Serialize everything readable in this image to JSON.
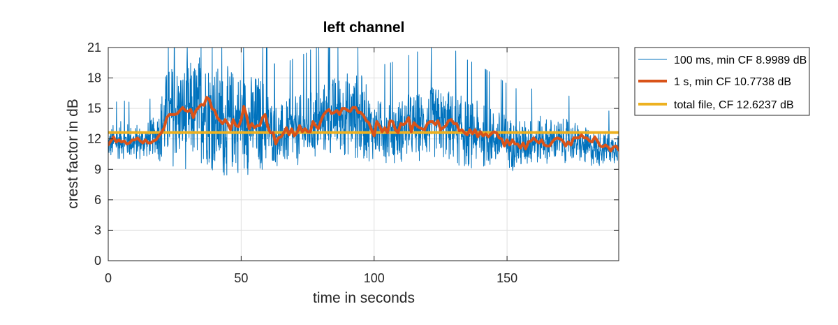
{
  "chart_data": {
    "type": "line",
    "title": "left channel",
    "xlabel": "time in seconds",
    "ylabel": "crest factor in dB",
    "xlim": [
      0,
      192
    ],
    "ylim": [
      0,
      21
    ],
    "xticks": [
      0,
      50,
      100,
      150
    ],
    "yticks": [
      0,
      3,
      6,
      9,
      12,
      15,
      18,
      21
    ],
    "grid": true,
    "legend_position": "outside-right-top",
    "series": [
      {
        "name": "100 ms, min CF 8.9989 dB",
        "color": "#0072BD",
        "style": "thin",
        "sample_interval_s": 0.1,
        "trend_x": [
          0,
          5,
          10,
          15,
          19,
          21,
          25,
          30,
          35,
          38,
          42,
          46,
          50,
          54,
          58,
          62,
          65,
          70,
          75,
          80,
          85,
          90,
          95,
          100,
          105,
          110,
          115,
          120,
          125,
          130,
          135,
          140,
          145,
          150,
          155,
          160,
          165,
          170,
          175,
          180,
          185,
          190,
          192
        ],
        "trend_y": [
          11.5,
          11.9,
          11.6,
          11.9,
          12.6,
          13.8,
          14.6,
          14.2,
          15.2,
          14.8,
          13.4,
          13.8,
          13.9,
          13.5,
          13.6,
          12.7,
          12.2,
          12.7,
          12.9,
          13.8,
          14.3,
          14.5,
          14.1,
          12.9,
          12.8,
          12.9,
          13.2,
          13.4,
          13.6,
          13.0,
          12.5,
          12.4,
          12.1,
          11.7,
          11.3,
          11.8,
          11.9,
          11.8,
          11.8,
          11.1,
          11.1,
          11.2,
          11.2
        ],
        "spread_x": [
          0,
          18,
          21,
          23,
          40,
          58,
          62,
          78,
          95,
          100,
          115,
          130,
          150,
          192
        ],
        "spread_y": [
          1.5,
          1.5,
          3.8,
          4.2,
          4.6,
          4.0,
          2.6,
          3.0,
          3.6,
          2.4,
          2.8,
          3.0,
          2.2,
          1.3
        ],
        "clipped_at": 21
      },
      {
        "name": "1 s, min CF 10.7738 dB",
        "color": "#D95319",
        "style": "thick",
        "sample_interval_s": 1,
        "values": [
          11.4,
          11.8,
          12.2,
          11.7,
          11.9,
          11.7,
          11.8,
          11.5,
          11.6,
          11.9,
          11.9,
          12.1,
          11.8,
          11.6,
          11.9,
          11.6,
          11.6,
          11.8,
          11.9,
          12.3,
          12.6,
          13.1,
          14.1,
          14.4,
          14.4,
          14.4,
          14.5,
          14.8,
          15.1,
          14.8,
          14.7,
          14.9,
          14.1,
          14.8,
          15.1,
          15.4,
          15.3,
          16.1,
          15.9,
          15.0,
          14.8,
          14.1,
          13.8,
          13.5,
          13.9,
          13.5,
          12.9,
          13.9,
          13.3,
          13.2,
          13.9,
          15.2,
          14.3,
          13.0,
          13.5,
          13.1,
          13.3,
          13.3,
          14.1,
          14.4,
          13.2,
          12.6,
          12.6,
          11.5,
          12.1,
          12.2,
          12.6,
          13.1,
          12.4,
          13.0,
          12.3,
          12.6,
          13.3,
          12.7,
          13.0,
          12.7,
          12.7,
          13.7,
          13.3,
          13.0,
          13.8,
          14.4,
          14.7,
          14.9,
          14.5,
          14.6,
          14.8,
          14.4,
          15.0,
          15.0,
          14.8,
          14.7,
          15.1,
          15.1,
          14.6,
          14.6,
          14.3,
          13.8,
          13.6,
          12.9,
          12.3,
          13.7,
          13.3,
          12.7,
          13.1,
          12.6,
          13.8,
          13.7,
          12.9,
          12.6,
          13.5,
          13.4,
          13.6,
          14.1,
          12.7,
          13.6,
          13.3,
          13.1,
          13.0,
          12.9,
          13.5,
          13.7,
          13.7,
          13.4,
          13.8,
          12.9,
          13.1,
          13.3,
          13.8,
          13.9,
          13.5,
          13.5,
          12.8,
          12.9,
          12.6,
          12.4,
          12.9,
          12.5,
          12.9,
          12.2,
          12.7,
          12.3,
          12.5,
          12.2,
          12.5,
          12.7,
          12.6,
          12.1,
          12.0,
          11.3,
          11.9,
          11.4,
          11.9,
          11.5,
          11.5,
          11.1,
          11.6,
          11.0,
          11.7,
          11.8,
          12.1,
          11.8,
          11.6,
          11.9,
          11.4,
          11.3,
          11.3,
          11.7,
          12.0,
          12.1,
          12.0,
          11.8,
          11.3,
          11.7,
          11.4,
          12.1,
          12.1,
          12.1,
          12.4,
          12.1,
          12.1,
          11.8,
          11.7,
          12.2,
          11.8,
          11.3,
          11.2,
          11.4,
          11.2,
          10.8,
          11.2,
          11.3,
          10.9,
          11.4,
          11.1,
          11.4,
          11.6,
          11.5,
          11.5,
          11.2,
          11.3
        ]
      },
      {
        "name": "total file, CF 12.6237 dB",
        "color": "#EDB120",
        "style": "thick",
        "constant": 12.6237
      }
    ]
  }
}
